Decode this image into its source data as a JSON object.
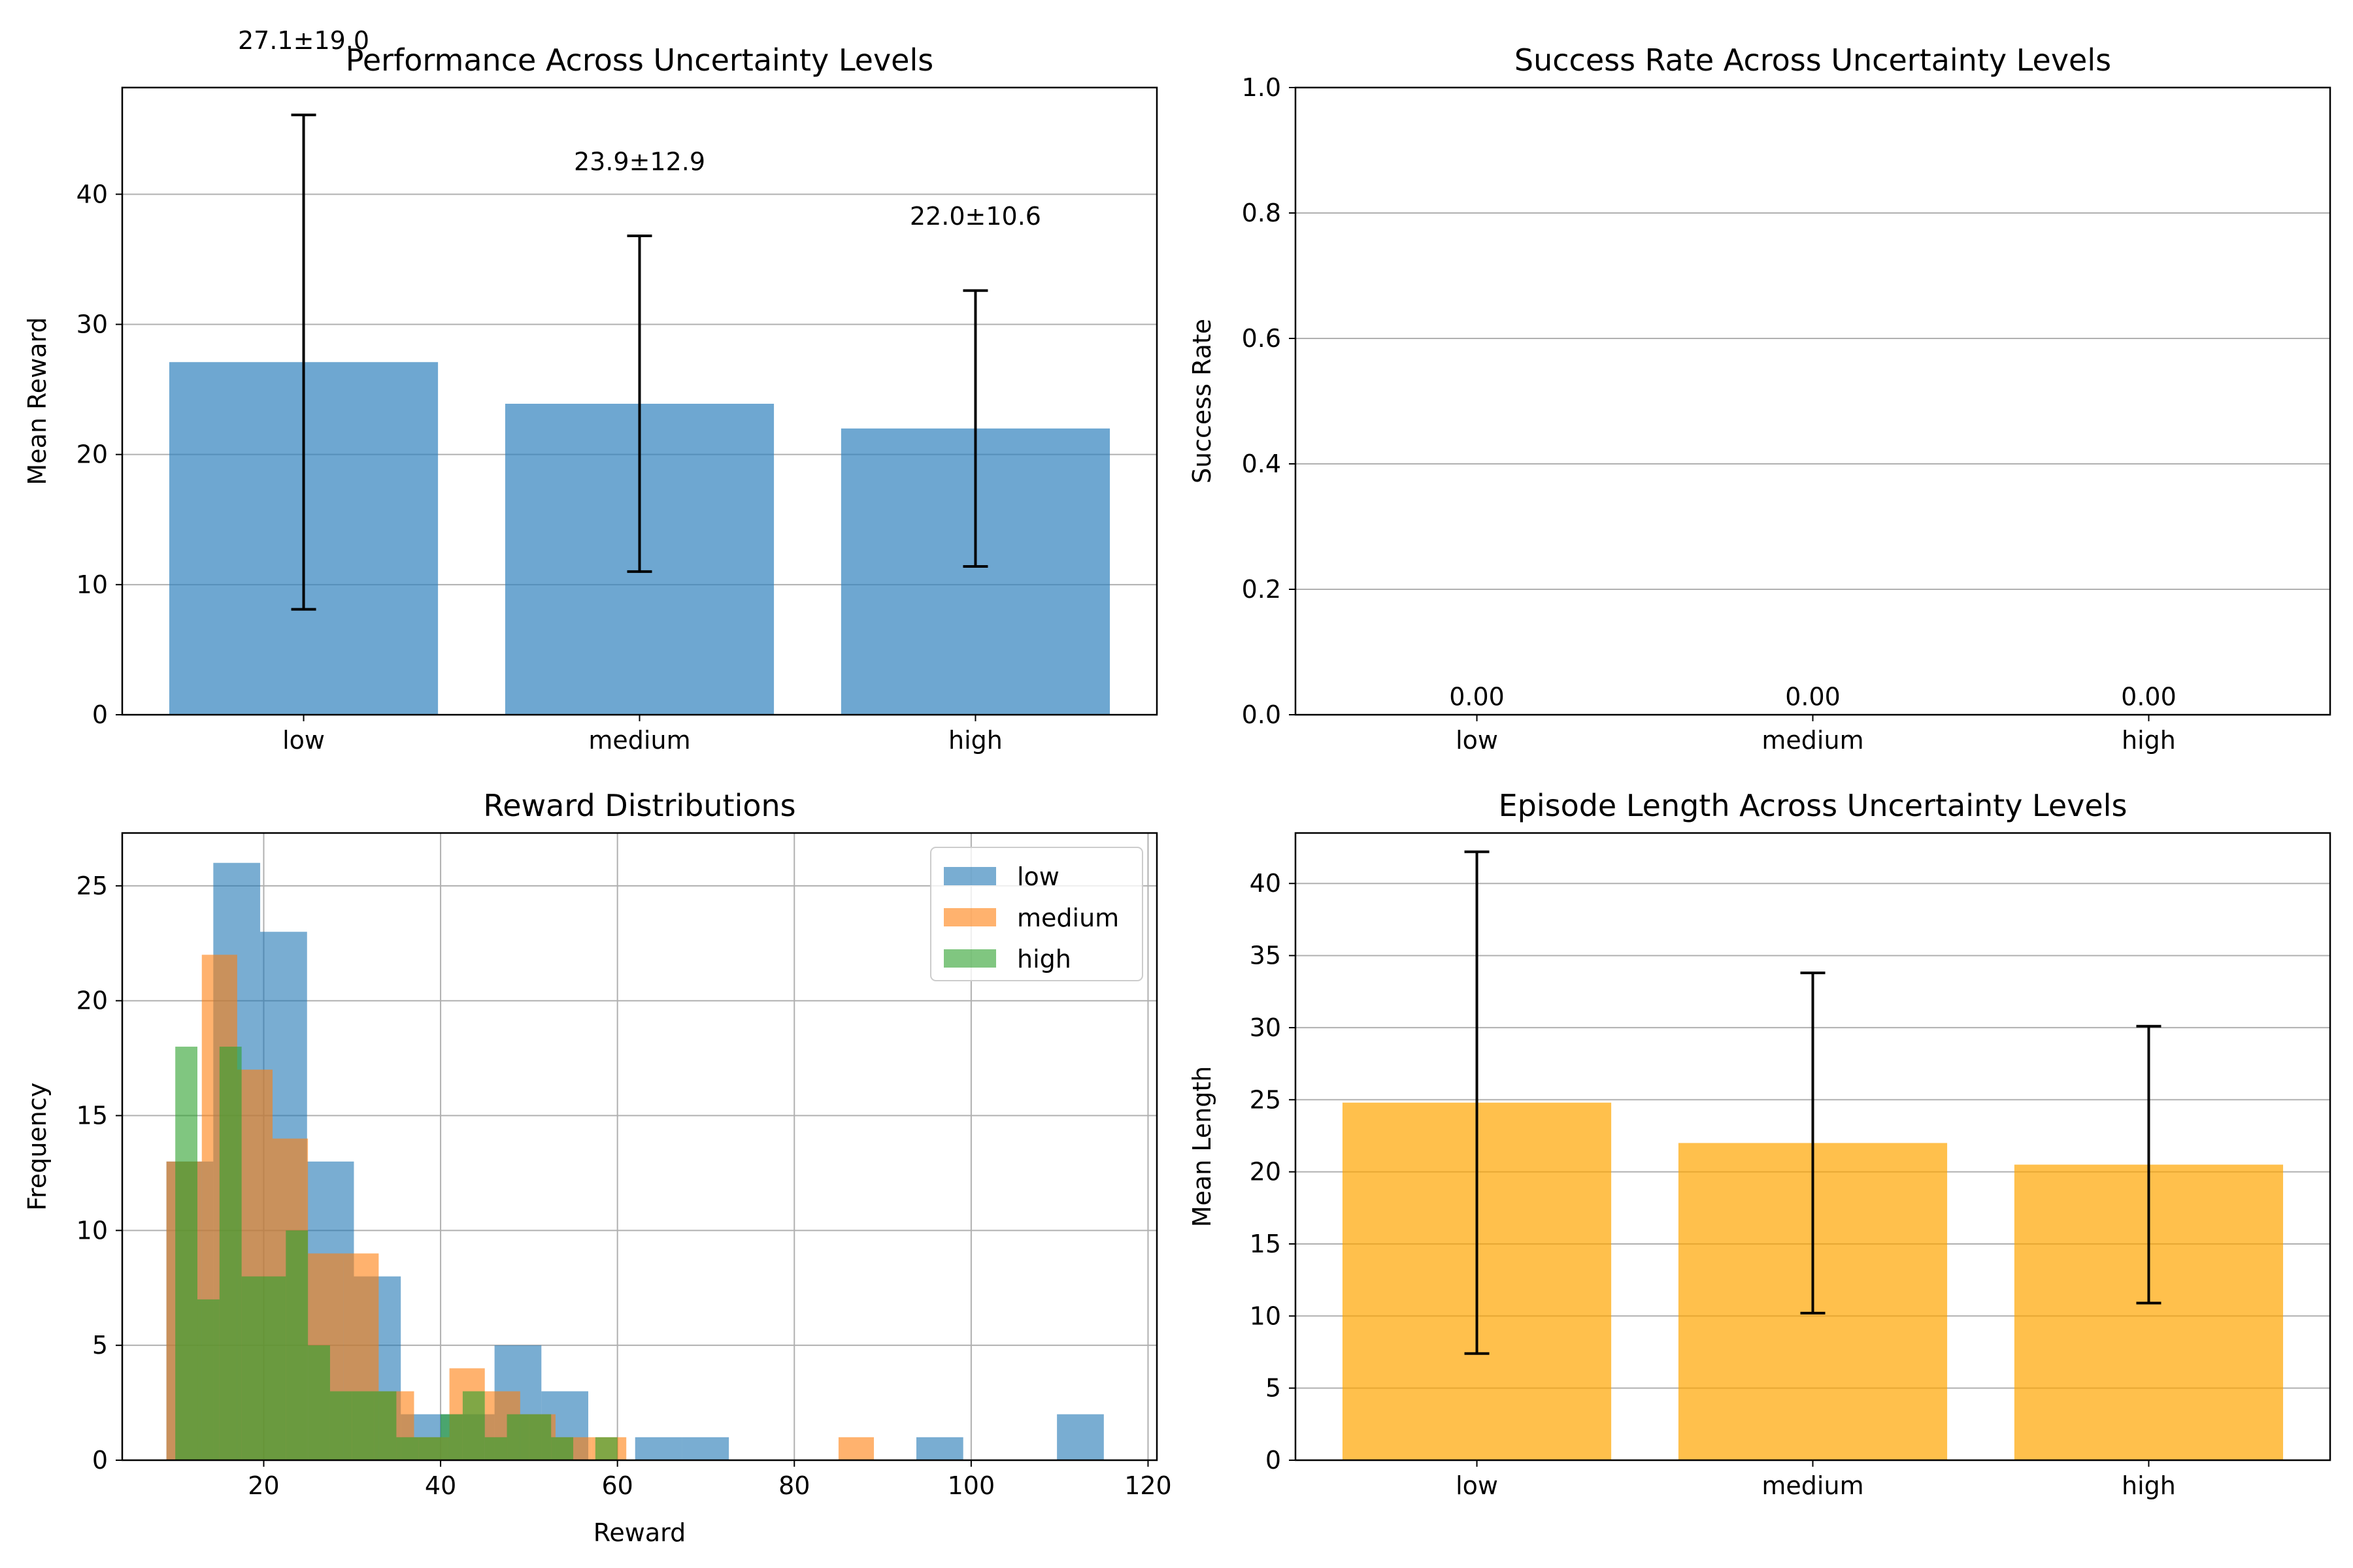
{
  "chart_data": [
    {
      "id": "perf",
      "type": "bar",
      "title": "Performance Across Uncertainty Levels",
      "xlabel": "",
      "ylabel": "Mean Reward",
      "categories": [
        "low",
        "medium",
        "high"
      ],
      "values": [
        27.1,
        23.9,
        22.0
      ],
      "errors": [
        19.0,
        12.9,
        10.6
      ],
      "labels": [
        "27.1±19.0",
        "23.9±12.9",
        "22.0±10.6"
      ],
      "ylim": [
        0,
        48.2
      ],
      "yticks": [
        0,
        10,
        20,
        30,
        40
      ],
      "grid": "y",
      "color": "#3182bd"
    },
    {
      "id": "success",
      "type": "bar",
      "title": "Success Rate Across Uncertainty Levels",
      "xlabel": "",
      "ylabel": "Success Rate",
      "categories": [
        "low",
        "medium",
        "high"
      ],
      "values": [
        0,
        0,
        0
      ],
      "labels": [
        "0.00",
        "0.00",
        "0.00"
      ],
      "ylim": [
        0,
        1.0
      ],
      "yticks": [
        0.0,
        0.2,
        0.4,
        0.6,
        0.8,
        1.0
      ],
      "ytick_labels": [
        "0.0",
        "0.2",
        "0.4",
        "0.6",
        "0.8",
        "1.0"
      ],
      "grid": "y",
      "color": "#2ca02c"
    },
    {
      "id": "dist",
      "type": "histogram",
      "title": "Reward Distributions",
      "xlabel": "Reward",
      "ylabel": "Frequency",
      "xlim": [
        4,
        121
      ],
      "ylim": [
        0,
        27.3
      ],
      "xticks": [
        20,
        40,
        60,
        80,
        100,
        120
      ],
      "yticks": [
        0,
        5,
        10,
        15,
        20,
        25
      ],
      "grid": "both",
      "legend": "top-right",
      "series": [
        {
          "name": "low",
          "color": "#1f77b4",
          "opacity": 0.6,
          "bins": [
            [
              9,
              14.3,
              13
            ],
            [
              14.3,
              19.6,
              26
            ],
            [
              19.6,
              24.9,
              23
            ],
            [
              24.9,
              30.2,
              13
            ],
            [
              30.2,
              35.5,
              8
            ],
            [
              35.5,
              40.8,
              2
            ],
            [
              40.8,
              46.1,
              2
            ],
            [
              46.1,
              51.4,
              5
            ],
            [
              51.4,
              56.7,
              3
            ],
            [
              56.7,
              62,
              0
            ],
            [
              62,
              67.3,
              1
            ],
            [
              67.3,
              72.6,
              1
            ],
            [
              72.6,
              77.9,
              0
            ],
            [
              77.9,
              83.2,
              0
            ],
            [
              83.2,
              88.5,
              0
            ],
            [
              88.5,
              93.8,
              0
            ],
            [
              93.8,
              99.1,
              1
            ],
            [
              99.1,
              104.4,
              0
            ],
            [
              104.4,
              109.7,
              0
            ],
            [
              109.7,
              115,
              2
            ]
          ]
        },
        {
          "name": "medium",
          "color": "#ff7f0e",
          "opacity": 0.6,
          "bins": [
            [
              9,
              13,
              13
            ],
            [
              13,
              17,
              22
            ],
            [
              17,
              21,
              17
            ],
            [
              21,
              25,
              14
            ],
            [
              25,
              29,
              9
            ],
            [
              29,
              33,
              9
            ],
            [
              33,
              37,
              3
            ],
            [
              37,
              41,
              1
            ],
            [
              41,
              45,
              4
            ],
            [
              45,
              49,
              3
            ],
            [
              49,
              53,
              2
            ],
            [
              53,
              57,
              1
            ],
            [
              57,
              61,
              1
            ],
            [
              61,
              65,
              0
            ],
            [
              65,
              69,
              0
            ],
            [
              69,
              73,
              0
            ],
            [
              73,
              77,
              0
            ],
            [
              77,
              81,
              0
            ],
            [
              81,
              85,
              0
            ],
            [
              85,
              89,
              1
            ]
          ]
        },
        {
          "name": "high",
          "color": "#2ca02c",
          "opacity": 0.6,
          "bins": [
            [
              10,
              12.5,
              18
            ],
            [
              12.5,
              15,
              7
            ],
            [
              15,
              17.5,
              18
            ],
            [
              17.5,
              20,
              8
            ],
            [
              20,
              22.5,
              8
            ],
            [
              22.5,
              25,
              10
            ],
            [
              25,
              27.5,
              5
            ],
            [
              27.5,
              30,
              3
            ],
            [
              30,
              32.5,
              3
            ],
            [
              32.5,
              35,
              3
            ],
            [
              35,
              37.5,
              1
            ],
            [
              37.5,
              40,
              1
            ],
            [
              40,
              42.5,
              2
            ],
            [
              42.5,
              45,
              3
            ],
            [
              45,
              47.5,
              1
            ],
            [
              47.5,
              50,
              2
            ],
            [
              50,
              52.5,
              2
            ],
            [
              52.5,
              55,
              1
            ],
            [
              55,
              57.5,
              0
            ],
            [
              57.5,
              60,
              1
            ]
          ]
        }
      ]
    },
    {
      "id": "length",
      "type": "bar",
      "title": "Episode Length Across Uncertainty Levels",
      "xlabel": "",
      "ylabel": "Mean Length",
      "categories": [
        "low",
        "medium",
        "high"
      ],
      "values": [
        24.8,
        22.0,
        20.5
      ],
      "errors": [
        17.4,
        11.8,
        9.6
      ],
      "ylim": [
        0,
        43.5
      ],
      "yticks": [
        0,
        5,
        10,
        15,
        20,
        25,
        30,
        35,
        40
      ],
      "grid": "y",
      "color": "#ffa500"
    }
  ]
}
